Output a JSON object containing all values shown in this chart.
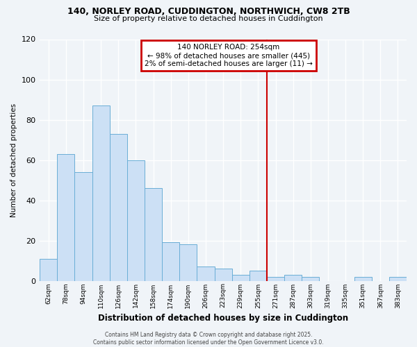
{
  "title_line1": "140, NORLEY ROAD, CUDDINGTON, NORTHWICH, CW8 2TB",
  "title_line2": "Size of property relative to detached houses in Cuddington",
  "xlabel": "Distribution of detached houses by size in Cuddington",
  "ylabel": "Number of detached properties",
  "bar_labels": [
    "62sqm",
    "78sqm",
    "94sqm",
    "110sqm",
    "126sqm",
    "142sqm",
    "158sqm",
    "174sqm",
    "190sqm",
    "206sqm",
    "223sqm",
    "239sqm",
    "255sqm",
    "271sqm",
    "287sqm",
    "303sqm",
    "319sqm",
    "335sqm",
    "351sqm",
    "367sqm",
    "383sqm"
  ],
  "bar_values": [
    11,
    63,
    54,
    87,
    73,
    60,
    46,
    19,
    18,
    7,
    6,
    3,
    5,
    2,
    3,
    2,
    0,
    0,
    2,
    0,
    2
  ],
  "bar_color": "#cce0f5",
  "bar_edge_color": "#6aaed6",
  "vline_index": 12,
  "vline_color": "#cc0000",
  "ylim": [
    0,
    120
  ],
  "yticks": [
    0,
    20,
    40,
    60,
    80,
    100,
    120
  ],
  "annotation_title": "140 NORLEY ROAD: 254sqm",
  "annotation_line2": "← 98% of detached houses are smaller (445)",
  "annotation_line3": "2% of semi-detached houses are larger (11) →",
  "footer_line1": "Contains HM Land Registry data © Crown copyright and database right 2025.",
  "footer_line2": "Contains public sector information licensed under the Open Government Licence v3.0.",
  "background_color": "#f0f4f8",
  "grid_color": "#ffffff"
}
